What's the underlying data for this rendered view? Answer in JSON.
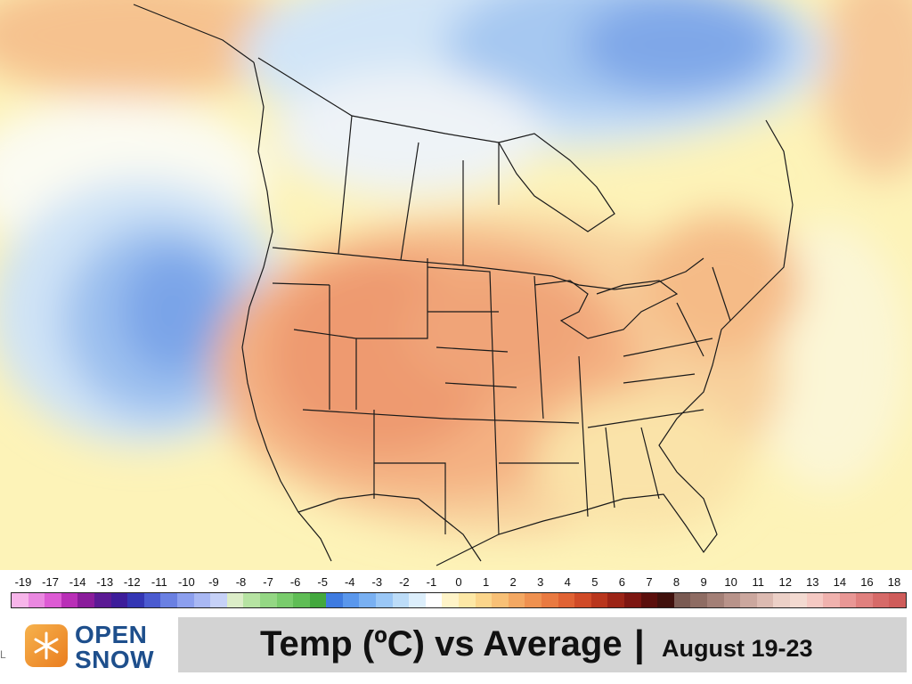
{
  "map": {
    "colors": {
      "ocean_neutral": "#fdfcf2",
      "warm_light": "#fbf0b4",
      "warm_mid": "#f7c896",
      "warm_strong": "#f2a679",
      "warm_peak": "#ea8e66",
      "cool_light": "#e6f1fb",
      "cool_mid": "#b9d9f5",
      "cool_strong": "#8db5ec",
      "cool_peak": "#6f99e3",
      "boundary": "#1a1a1a"
    }
  },
  "legend": {
    "ticks": [
      "-19",
      "-17",
      "-14",
      "-13",
      "-12",
      "-11",
      "-10",
      "-9",
      "-8",
      "-7",
      "-6",
      "-5",
      "-4",
      "-3",
      "-2",
      "-1",
      "0",
      "1",
      "2",
      "3",
      "4",
      "5",
      "6",
      "7",
      "8",
      "9",
      "10",
      "11",
      "12",
      "13",
      "14",
      "16",
      "18"
    ],
    "swatch_colors": [
      "#f7b5ea",
      "#ea88e0",
      "#dd5bd4",
      "#b92fb7",
      "#8a1c9b",
      "#5b1a94",
      "#3d1d9a",
      "#3436b4",
      "#4b5bd0",
      "#6a80e2",
      "#8c9fee",
      "#a9b8f3",
      "#c6d1f7",
      "#dcedc8",
      "#b6e3a2",
      "#94d784",
      "#79cc6c",
      "#5fbd55",
      "#43a83e",
      "#3f7be0",
      "#5a97ec",
      "#79b0f2",
      "#9ac7f6",
      "#bcdcf8",
      "#dceefb",
      "#ffffff",
      "#fff4c8",
      "#fde8a6",
      "#fbd58b",
      "#f8c076",
      "#f4a862",
      "#ef9150",
      "#e97a41",
      "#e06233",
      "#d04a27",
      "#b9361d",
      "#9c2416",
      "#7d1611",
      "#5b0f0c",
      "#40100c",
      "#7a5a52",
      "#8e6c63",
      "#a37f76",
      "#b8938a",
      "#cba79e",
      "#dcbab1",
      "#ecd0c7",
      "#f3dad1",
      "#f5c9c3",
      "#f0b2ae",
      "#e99795",
      "#e0807e",
      "#d66a68",
      "#cf5c5a"
    ]
  },
  "logo": {
    "line1": "OPEN",
    "line2": "SNOW"
  },
  "title": {
    "main": "Temp (ºC) vs Average",
    "separator": "|",
    "dates": "August 19-23"
  },
  "edge_mark": "L"
}
